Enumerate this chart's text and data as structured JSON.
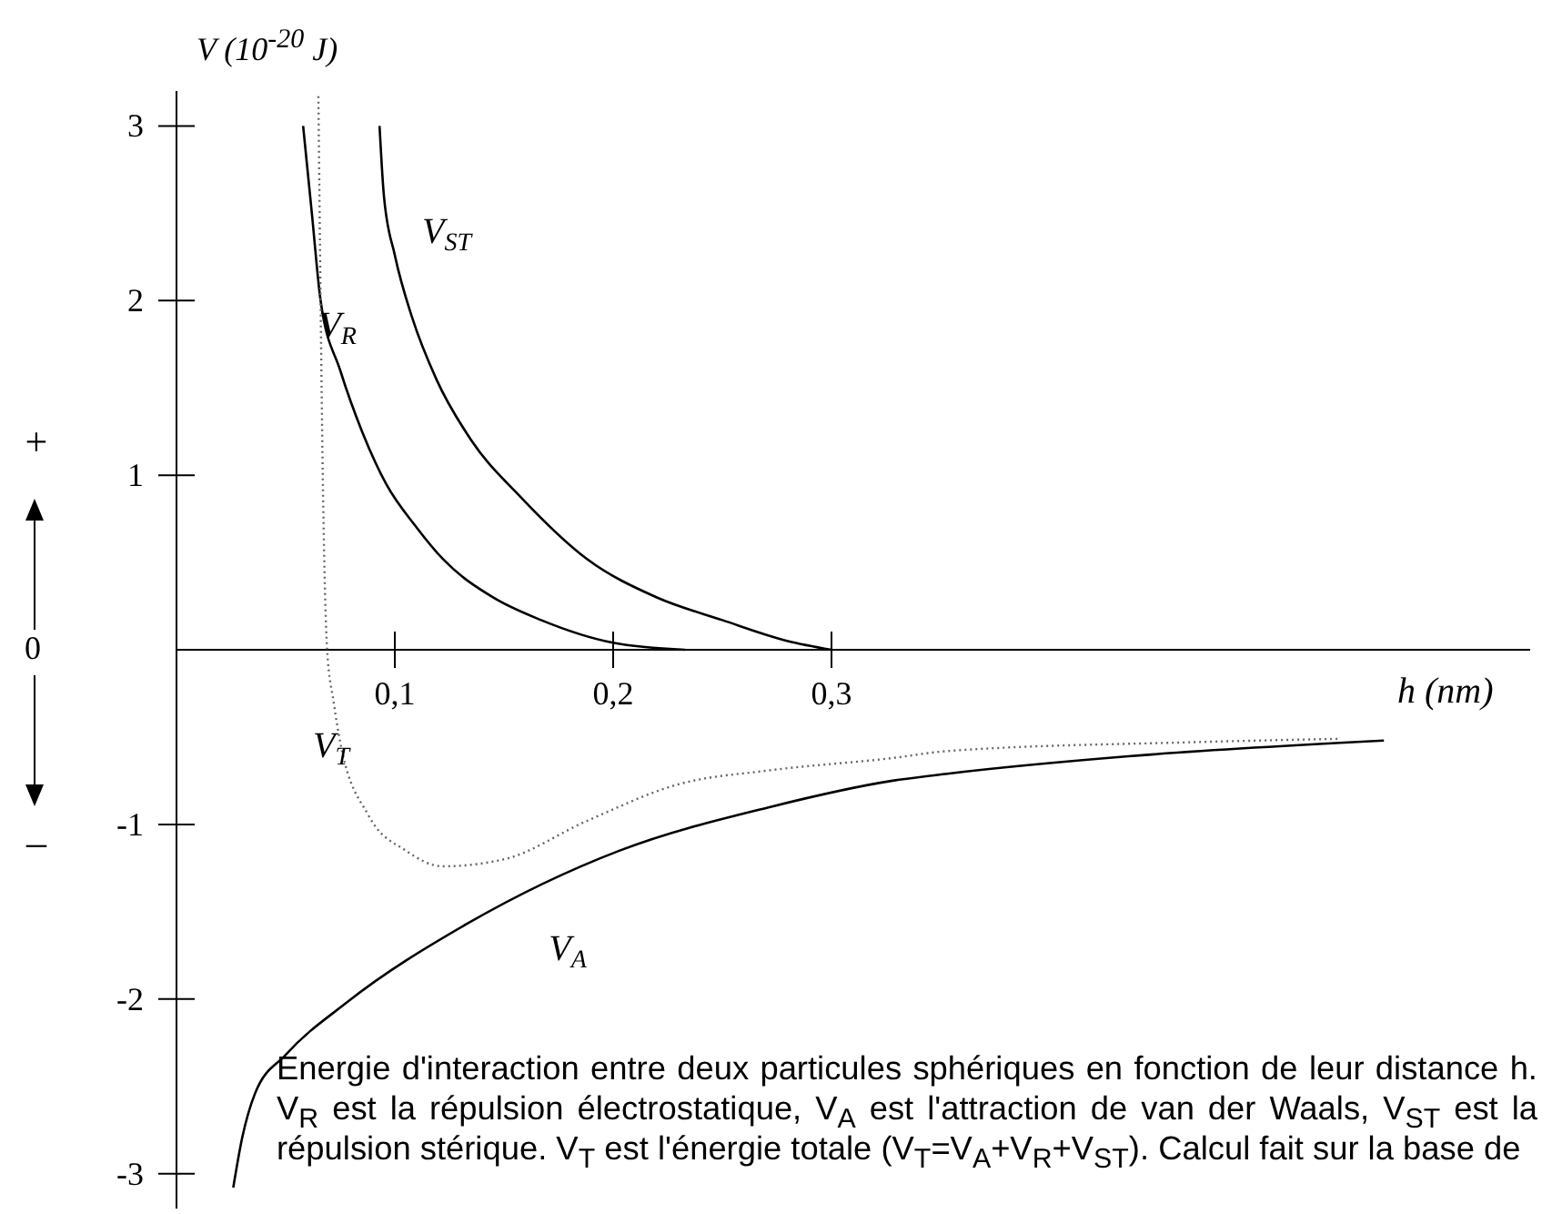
{
  "chart_data": {
    "type": "line",
    "ylabel": "V (10$^{-20}$ J)",
    "xlabel": "h (nm)",
    "xlim": [
      0,
      0.62
    ],
    "ylim": [
      -3.2,
      3.2
    ],
    "xticks": [
      {
        "value": 0.1,
        "label": "0,1"
      },
      {
        "value": 0.2,
        "label": "0,2"
      },
      {
        "value": 0.3,
        "label": "0,3"
      }
    ],
    "yticks": [
      -3,
      -2,
      -1,
      1,
      2,
      3
    ],
    "marker": "none",
    "series": [
      {
        "name": "V$_{ST}$",
        "color": "#000000",
        "line_style": "solid",
        "x": [
          0.093,
          0.095,
          0.1,
          0.108,
          0.119,
          0.135,
          0.158,
          0.188,
          0.22,
          0.25,
          0.28,
          0.3
        ],
        "values": [
          3,
          2.6,
          2.26,
          1.9,
          1.55,
          1.2,
          0.87,
          0.52,
          0.3,
          0.17,
          0.05,
          0
        ]
      },
      {
        "name": "V$_{R}$",
        "color": "#000000",
        "line_style": "solid",
        "x": [
          0.058,
          0.062,
          0.066,
          0.075,
          0.085,
          0.096,
          0.11,
          0.122,
          0.145,
          0.167,
          0.2,
          0.233
        ],
        "values": [
          3,
          2.5,
          2,
          1.6,
          1.25,
          0.95,
          0.7,
          0.52,
          0.3,
          0.17,
          0.04,
          0
        ]
      },
      {
        "name": "V$_{T}$",
        "color": "#666666",
        "line_style": "dotted",
        "x": [
          0.065,
          0.066,
          0.067,
          0.069,
          0.072,
          0.075,
          0.088,
          0.105,
          0.122,
          0.15,
          0.188,
          0.23,
          0.272,
          0.328,
          0.353,
          0.463,
          0.533
        ],
        "values": [
          3.17,
          2,
          1,
          0,
          -0.3,
          -0.53,
          -0.95,
          -1.15,
          -1.24,
          -1.2,
          -0.98,
          -0.77,
          -0.69,
          -0.62,
          -0.58,
          -0.53,
          -0.51
        ]
      },
      {
        "name": "V$_{A}$",
        "color": "#000000",
        "line_style": "solid",
        "x": [
          0.026,
          0.03,
          0.036,
          0.05,
          0.078,
          0.133,
          0.203,
          0.272,
          0.328,
          0.353,
          0.436,
          0.553
        ],
        "values": [
          -3.08,
          -2.8,
          -2.54,
          -2.32,
          -2.02,
          -1.57,
          -1.15,
          -0.9,
          -0.75,
          -0.71,
          -0.61,
          -0.52
        ]
      }
    ],
    "annotations": [
      "+",
      "–",
      "0",
      "Energie d'interaction entre deux particules sphériques en fonction de leur distance h. V$_{R}$ est la répulsion électrostatique, V$_{A}$ est l'attraction de van der Waals, V$_{ST}$ est la répulsion stérique. V$_{T}$ est l'énergie totale (V$_{T}$=V$_{A}$+V$_{R}$+V$_{ST}$). Calcul fait sur la base de"
    ]
  }
}
